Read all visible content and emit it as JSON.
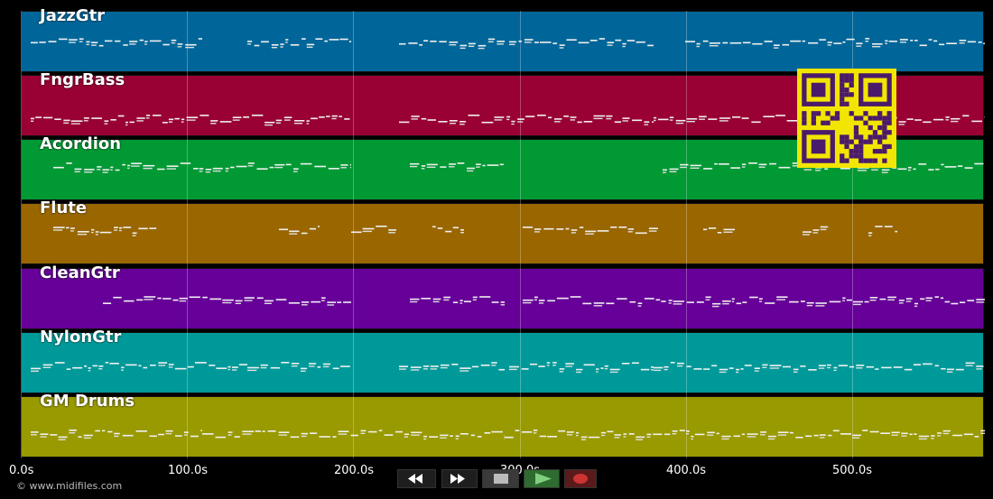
{
  "axis": {
    "ticks": [
      "0.0s",
      "100.0s",
      "200.0s",
      "300.0s",
      "400.0s",
      "500.0s"
    ]
  },
  "tracks": [
    {
      "label": "JazzGtr",
      "color": "#006699"
    },
    {
      "label": "FngrBass",
      "color": "#990033"
    },
    {
      "label": "Acordion",
      "color": "#009933"
    },
    {
      "label": "Flute",
      "color": "#996600"
    },
    {
      "label": "CleanGtr",
      "color": "#660099"
    },
    {
      "label": "NylonGtr",
      "color": "#009999"
    },
    {
      "label": "GM Drums",
      "color": "#999900"
    }
  ],
  "footer": {
    "copyright": "© www.midifiles.com"
  },
  "controls": {
    "rewind_icon": "rewind-icon",
    "forward_icon": "fast-forward-icon",
    "stop_icon": "stop-icon",
    "play_icon": "play-icon",
    "record_icon": "record-icon",
    "play_color": "#2e8b2e",
    "record_color": "#cc3333"
  },
  "overlay": {
    "qr_color": "#f2e600",
    "qr_dark": "#4b1a6b"
  }
}
